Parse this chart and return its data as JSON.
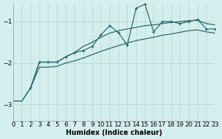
{
  "xlabel": "Humidex (Indice chaleur)",
  "bg_color": "#d4eeee",
  "grid_color": "#b8d4d4",
  "line_color": "#226666",
  "xlim": [
    0,
    23
  ],
  "ylim": [
    -3.4,
    -0.55
  ],
  "yticks": [
    -3,
    -2,
    -1
  ],
  "xticks": [
    0,
    1,
    2,
    3,
    4,
    5,
    6,
    7,
    8,
    9,
    10,
    11,
    12,
    13,
    14,
    15,
    16,
    17,
    18,
    19,
    20,
    21,
    22,
    23
  ],
  "series_marked_x": [
    2,
    3,
    4,
    5,
    6,
    7,
    8,
    9,
    10,
    11,
    12,
    13,
    14,
    15,
    16,
    17,
    18,
    19,
    20,
    21,
    22,
    23
  ],
  "series_marked_y": [
    -2.6,
    -1.98,
    -1.98,
    -1.98,
    -1.85,
    -1.75,
    -1.7,
    -1.6,
    -1.32,
    -1.1,
    -1.27,
    -1.57,
    -0.68,
    -0.58,
    -1.25,
    -1.0,
    -1.0,
    -1.05,
    -1.0,
    -0.95,
    -1.18,
    -1.18
  ],
  "series_smooth1_x": [
    0,
    1,
    2,
    3,
    4,
    5,
    6,
    7,
    8,
    9,
    10,
    11,
    12,
    13,
    14,
    15,
    16,
    17,
    18,
    19,
    20,
    21,
    22,
    23
  ],
  "series_smooth1_y": [
    -2.92,
    -2.92,
    -2.6,
    -1.98,
    -1.98,
    -1.98,
    -1.85,
    -1.75,
    -1.6,
    -1.5,
    -1.38,
    -1.28,
    -1.22,
    -1.18,
    -1.14,
    -1.1,
    -1.08,
    -1.05,
    -1.02,
    -1.0,
    -0.98,
    -0.97,
    -1.05,
    -1.08
  ],
  "series_smooth2_x": [
    0,
    1,
    2,
    3,
    4,
    5,
    6,
    7,
    8,
    9,
    10,
    11,
    12,
    13,
    14,
    15,
    16,
    17,
    18,
    19,
    20,
    21,
    22,
    23
  ],
  "series_smooth2_y": [
    -2.92,
    -2.92,
    -2.6,
    -2.1,
    -2.1,
    -2.08,
    -2.0,
    -1.95,
    -1.88,
    -1.8,
    -1.72,
    -1.65,
    -1.58,
    -1.52,
    -1.46,
    -1.42,
    -1.38,
    -1.33,
    -1.3,
    -1.26,
    -1.22,
    -1.2,
    -1.25,
    -1.28
  ]
}
